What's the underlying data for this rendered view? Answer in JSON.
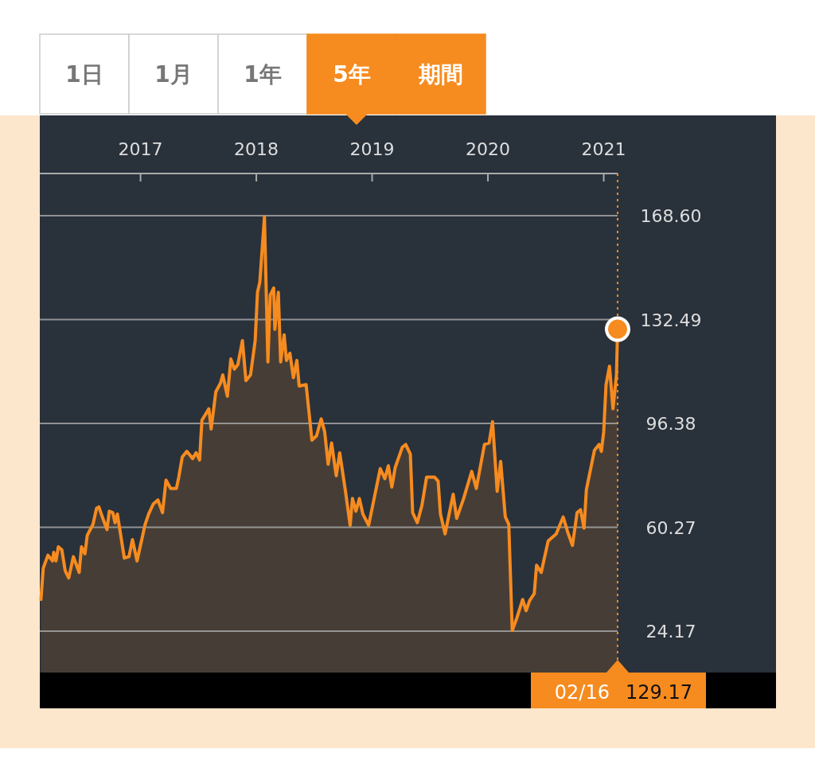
{
  "chart_data": {
    "type": "area",
    "x": [
      2016.14,
      2016.16,
      2016.2,
      2016.24,
      2016.25,
      2016.27,
      2016.29,
      2016.32,
      2016.35,
      2016.38,
      2016.42,
      2016.47,
      2016.49,
      2016.52,
      2016.54,
      2016.59,
      2016.62,
      2016.64,
      2016.67,
      2016.71,
      2016.73,
      2016.76,
      2016.78,
      2016.8,
      2016.86,
      2016.9,
      2016.93,
      2016.97,
      2017.04,
      2017.07,
      2017.11,
      2017.15,
      2017.19,
      2017.22,
      2017.26,
      2017.31,
      2017.33,
      2017.36,
      2017.4,
      2017.45,
      2017.48,
      2017.51,
      2017.53,
      2017.59,
      2017.61,
      2017.65,
      2017.69,
      2017.71,
      2017.75,
      2017.78,
      2017.81,
      2017.84,
      2017.88,
      2017.91,
      2017.95,
      2017.99,
      2018.01,
      2018.03,
      2018.07,
      2018.1,
      2018.12,
      2018.15,
      2018.16,
      2018.19,
      2018.21,
      2018.24,
      2018.26,
      2018.29,
      2018.32,
      2018.35,
      2018.37,
      2018.43,
      2018.48,
      2018.52,
      2018.56,
      2018.59,
      2018.62,
      2018.65,
      2018.69,
      2018.72,
      2018.77,
      2018.81,
      2018.83,
      2018.86,
      2018.89,
      2018.92,
      2018.97,
      2019.07,
      2019.11,
      2019.14,
      2019.17,
      2019.2,
      2019.26,
      2019.29,
      2019.33,
      2019.35,
      2019.39,
      2019.43,
      2019.47,
      2019.54,
      2019.57,
      2019.59,
      2019.63,
      2019.7,
      2019.73,
      2019.79,
      2019.86,
      2019.9,
      2019.97,
      2020.01,
      2020.04,
      2020.08,
      2020.11,
      2020.15,
      2020.18,
      2020.21,
      2020.25,
      2020.3,
      2020.33,
      2020.36,
      2020.4,
      2020.42,
      2020.46,
      2020.52,
      2020.59,
      2020.65,
      2020.69,
      2020.73,
      2020.77,
      2020.8,
      2020.83,
      2020.85,
      2020.92,
      2020.96,
      2020.98,
      2021.0,
      2021.02,
      2021.05,
      2021.08,
      2021.11,
      2021.12
    ],
    "series": [
      {
        "color": "#f68b1f",
        "values": [
          35.2,
          46.1,
          50.6,
          48.6,
          51.6,
          48.6,
          53.5,
          52.5,
          45.1,
          42.7,
          50.1,
          44.6,
          53.5,
          51.1,
          57.5,
          61.4,
          66.9,
          67.4,
          63.9,
          59.5,
          65.9,
          65.4,
          61.9,
          64.9,
          49.6,
          50.1,
          56.0,
          48.6,
          61.4,
          64.9,
          68.4,
          69.8,
          65.4,
          76.7,
          73.8,
          73.8,
          77.7,
          84.7,
          86.7,
          84.2,
          86.2,
          83.7,
          97.5,
          101.5,
          94.5,
          107.4,
          110.4,
          113.3,
          105.9,
          118.8,
          115.3,
          116.8,
          125.2,
          111.3,
          113.3,
          125.2,
          142.0,
          145.5,
          168.2,
          117.8,
          141.0,
          143.5,
          129.1,
          142.0,
          117.8,
          127.2,
          118.3,
          120.8,
          112.3,
          118.3,
          109.4,
          109.9,
          90.6,
          92.1,
          98.0,
          93.6,
          82.2,
          89.6,
          78.2,
          86.2,
          72.8,
          61.0,
          70.3,
          65.9,
          70.3,
          64.9,
          61.0,
          80.7,
          77.2,
          81.7,
          74.3,
          81.2,
          88.1,
          89.1,
          85.7,
          65.4,
          61.9,
          67.9,
          77.7,
          77.7,
          76.3,
          64.9,
          58.0,
          71.8,
          63.4,
          70.3,
          79.7,
          73.8,
          89.1,
          89.6,
          97.0,
          72.8,
          83.2,
          63.9,
          61.4,
          24.4,
          28.8,
          35.2,
          31.3,
          34.8,
          37.2,
          47.1,
          44.6,
          55.5,
          58.0,
          63.9,
          58.5,
          54.0,
          65.4,
          66.4,
          60.0,
          73.3,
          87.1,
          89.1,
          86.7,
          93.6,
          109.9,
          116.3,
          101.5,
          113.3,
          129.17
        ]
      },
      {
        "type": "scatter",
        "color": "#f68b1f",
        "marker": "circle",
        "x": [
          2021.12
        ],
        "values": [
          129.17
        ]
      }
    ],
    "xlim": [
      2016.13,
      2021.12
    ],
    "ylim": [
      9.8,
      183.3
    ],
    "xticks": [
      2017,
      2018,
      2019,
      2020,
      2021
    ],
    "yticks": [
      24.17,
      60.27,
      96.38,
      132.49,
      {
        "value": 168.6,
        "label": "168.60"
      }
    ],
    "grid": "y",
    "ref_lines": [
      {
        "axis": "x",
        "value": 2021.12,
        "color": "#f68b1f",
        "line_style": "dotted"
      }
    ],
    "annotations": [
      "1日",
      "1月",
      "1年",
      "5年",
      "期間",
      "02/16",
      "129.17"
    ]
  }
}
